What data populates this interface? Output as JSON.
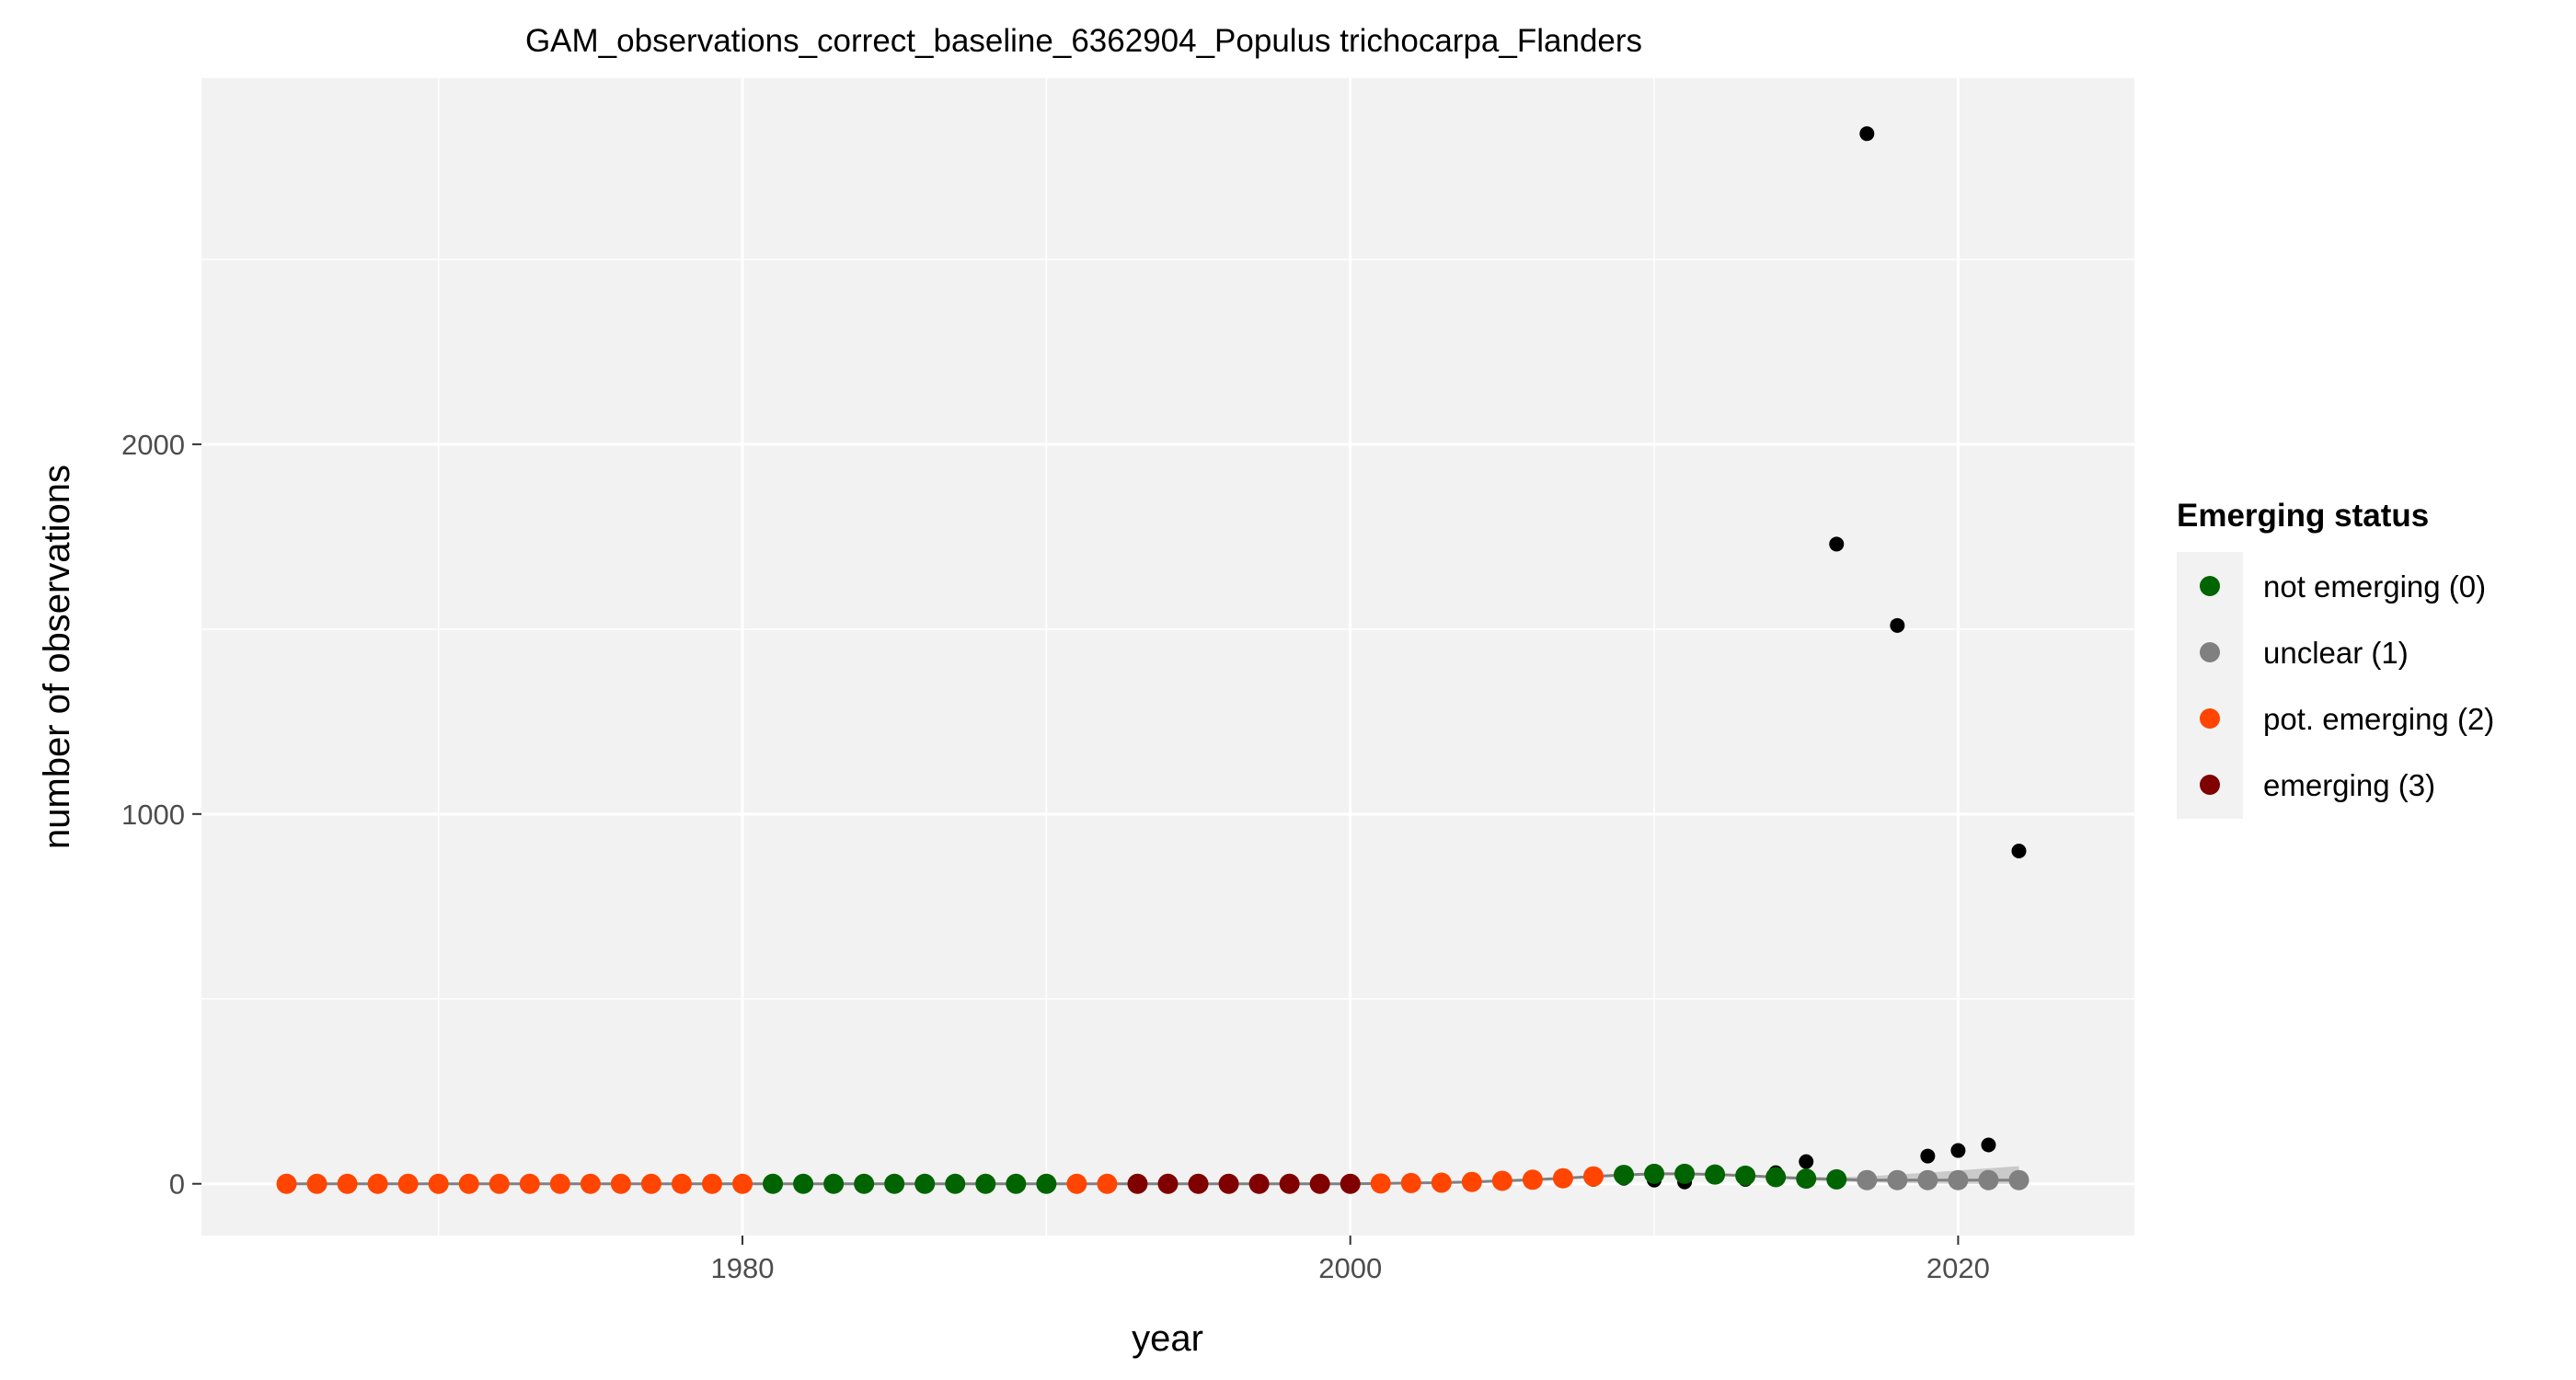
{
  "chart_data": {
    "type": "scatter",
    "title": "GAM_observations_correct_baseline_6362904_Populus trichocarpa_Flanders",
    "xlabel": "year",
    "ylabel": "number of observations",
    "xlim": [
      1962.2,
      2025.8
    ],
    "ylim": [
      -140,
      2990
    ],
    "x_ticks": [
      1980,
      2000,
      2020
    ],
    "x_minor_ticks": [
      1970,
      1990,
      2010
    ],
    "y_ticks": [
      0,
      1000,
      2000
    ],
    "y_minor_ticks": [
      500,
      1500,
      2500
    ],
    "grid": true,
    "legend_position": "right",
    "legend_title": "Emerging status",
    "status_levels": [
      {
        "label": "not emerging (0)",
        "color": "#006400"
      },
      {
        "label": "unclear (1)",
        "color": "#808080"
      },
      {
        "label": "pot. emerging (2)",
        "color": "#FF4500"
      },
      {
        "label": "emerging (3)",
        "color": "#800000"
      }
    ],
    "observed_color": "#000000",
    "observed": {
      "x": [
        2007,
        2008,
        2009,
        2010,
        2011,
        2012,
        2013,
        2014,
        2015,
        2016,
        2017,
        2018,
        2019,
        2020,
        2021,
        2022
      ],
      "y": [
        8,
        12,
        15,
        10,
        5,
        20,
        12,
        30,
        60,
        1730,
        2840,
        1510,
        75,
        90,
        105,
        900
      ]
    },
    "gam_fit": {
      "x": [
        1965,
        1966,
        1967,
        1968,
        1969,
        1970,
        1971,
        1972,
        1973,
        1974,
        1975,
        1976,
        1977,
        1978,
        1979,
        1980,
        1981,
        1982,
        1983,
        1984,
        1985,
        1986,
        1987,
        1988,
        1989,
        1990,
        1991,
        1992,
        1993,
        1994,
        1995,
        1996,
        1997,
        1998,
        1999,
        2000,
        2001,
        2002,
        2003,
        2004,
        2005,
        2006,
        2007,
        2008,
        2009,
        2010,
        2011,
        2012,
        2013,
        2014,
        2015,
        2016,
        2017,
        2018,
        2019,
        2020,
        2021,
        2022
      ],
      "y": [
        0,
        0,
        0,
        0,
        0,
        0,
        0,
        0,
        0,
        0,
        0,
        0,
        0,
        0,
        0,
        0,
        0,
        0,
        0,
        0,
        0,
        0,
        0,
        0,
        0,
        0,
        0,
        0,
        0,
        0,
        0,
        0,
        0,
        0,
        0,
        0,
        1,
        2,
        3,
        5,
        8,
        11,
        15,
        20,
        24,
        27,
        27,
        25,
        22,
        18,
        14,
        12,
        10,
        10,
        10,
        10,
        10,
        10
      ],
      "status": [
        2,
        2,
        2,
        2,
        2,
        2,
        2,
        2,
        2,
        2,
        2,
        2,
        2,
        2,
        2,
        2,
        0,
        0,
        0,
        0,
        0,
        0,
        0,
        0,
        0,
        0,
        2,
        2,
        3,
        3,
        3,
        3,
        3,
        3,
        3,
        3,
        2,
        2,
        2,
        2,
        2,
        2,
        2,
        2,
        0,
        0,
        0,
        0,
        0,
        0,
        0,
        0,
        1,
        1,
        1,
        1,
        1,
        1
      ],
      "ci_upper": [
        0,
        0,
        0,
        0,
        0,
        0,
        0,
        0,
        0,
        0,
        0,
        0,
        0,
        0,
        0,
        0,
        0,
        0,
        0,
        0,
        0,
        0,
        0,
        0,
        0,
        0,
        0,
        0,
        0,
        0,
        0,
        0,
        0,
        0,
        0,
        0,
        2,
        3,
        5,
        7,
        10,
        13,
        18,
        23,
        27,
        30,
        30,
        28,
        25,
        22,
        19,
        18,
        20,
        25,
        30,
        36,
        42,
        48
      ],
      "ci_lower": [
        0,
        0,
        0,
        0,
        0,
        0,
        0,
        0,
        0,
        0,
        0,
        0,
        0,
        0,
        0,
        0,
        0,
        0,
        0,
        0,
        0,
        0,
        0,
        0,
        0,
        0,
        0,
        0,
        0,
        0,
        0,
        0,
        0,
        0,
        0,
        0,
        0,
        1,
        2,
        4,
        6,
        9,
        12,
        17,
        21,
        24,
        24,
        22,
        19,
        15,
        10,
        7,
        4,
        2,
        1,
        0,
        0,
        0
      ]
    }
  }
}
